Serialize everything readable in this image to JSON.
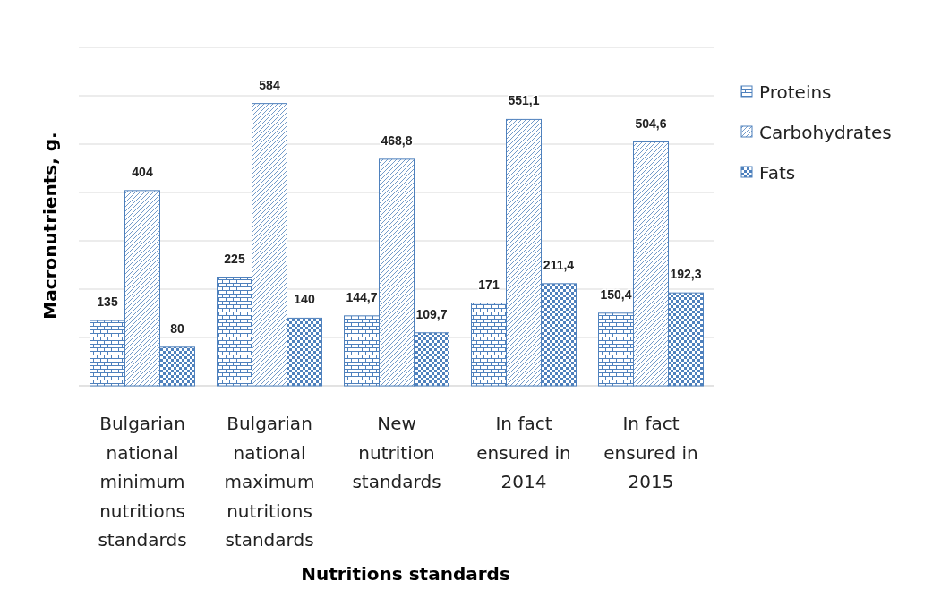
{
  "chart_data": {
    "type": "bar",
    "xlabel": "Nutritions standards",
    "ylabel": "Macronutrients, g.",
    "categories": [
      "Bulgarian national minimum nutritions standards",
      "Bulgarian national maximum nutritions standards",
      "New nutrition standards",
      "In fact ensured in 2014",
      "In fact ensured in 2015"
    ],
    "series": [
      {
        "name": "Proteins",
        "color": "#4f81bd",
        "values": [
          135,
          225,
          144.7,
          171,
          150.4
        ],
        "value_labels": [
          "135",
          "225",
          "144,7",
          "171",
          "150,4"
        ]
      },
      {
        "name": "Carbohydrates",
        "color": "#4f81bd",
        "values": [
          404,
          584,
          468.8,
          551.1,
          504.6
        ],
        "value_labels": [
          "404",
          "584",
          "468,8",
          "551,1",
          "504,6"
        ]
      },
      {
        "name": "Fats",
        "color": "#4f81bd",
        "values": [
          80,
          140,
          109.7,
          211.4,
          192.3
        ],
        "value_labels": [
          "80",
          "140",
          "109,7",
          "211,4",
          "192,3"
        ]
      }
    ],
    "ylim": [
      0,
      700
    ],
    "yticks": [
      {
        "value": 0,
        "label": null
      },
      {
        "value": 100,
        "label": null
      },
      {
        "value": 200,
        "label": null
      },
      {
        "value": 300,
        "label": null
      },
      {
        "value": 400,
        "label": null
      },
      {
        "value": 500,
        "label": null
      },
      {
        "value": 600,
        "label": null
      },
      {
        "value": 700,
        "label": null
      }
    ],
    "tick_labels": "x",
    "grid": "y",
    "legend": "right"
  }
}
